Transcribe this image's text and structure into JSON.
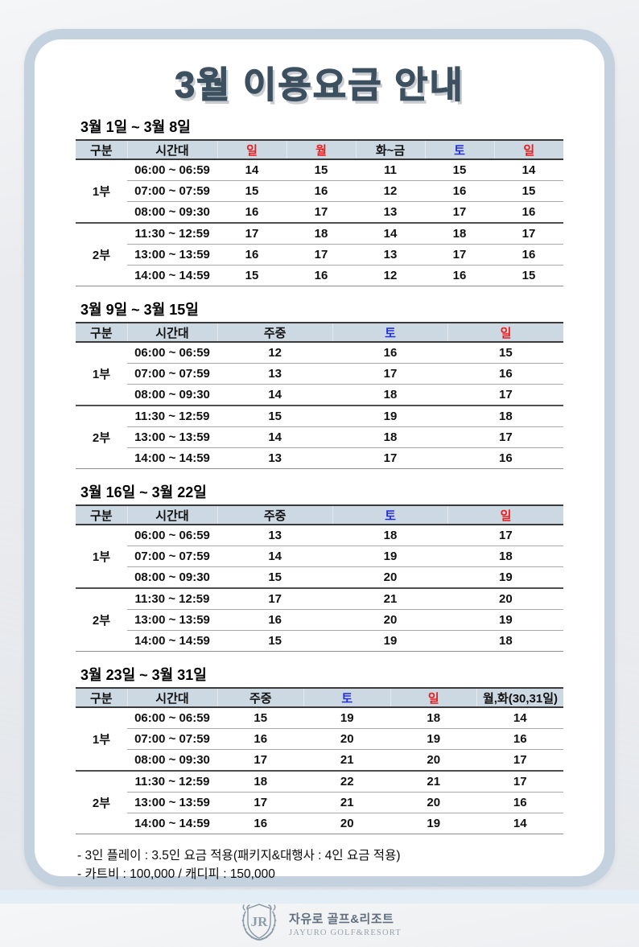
{
  "page": {
    "title": "3월 이용요금 안내"
  },
  "colors": {
    "sunday_red": "#ee1c1c",
    "saturday_blue": "#2430df",
    "plain_header": "#111111",
    "header_bg": "#ccd8e2",
    "frame": "#c3d2de",
    "title": "#3d5060"
  },
  "tables": [
    {
      "title": "3월 1일 ~ 3월 8일",
      "columns": [
        {
          "label": "구분",
          "type": "plain"
        },
        {
          "label": "시간대",
          "type": "plain"
        },
        {
          "label": "일",
          "type": "sunday"
        },
        {
          "label": "월",
          "type": "sunday"
        },
        {
          "label": "화~금",
          "type": "plain"
        },
        {
          "label": "토",
          "type": "saturday"
        },
        {
          "label": "일",
          "type": "sunday"
        }
      ],
      "groups": [
        {
          "label": "1부",
          "rows": [
            {
              "time": "06:00 ~ 06:59",
              "prices": [
                "14",
                "15",
                "11",
                "15",
                "14"
              ]
            },
            {
              "time": "07:00 ~ 07:59",
              "prices": [
                "15",
                "16",
                "12",
                "16",
                "15"
              ]
            },
            {
              "time": "08:00 ~ 09:30",
              "prices": [
                "16",
                "17",
                "13",
                "17",
                "16"
              ]
            }
          ]
        },
        {
          "label": "2부",
          "rows": [
            {
              "time": "11:30 ~ 12:59",
              "prices": [
                "17",
                "18",
                "14",
                "18",
                "17"
              ]
            },
            {
              "time": "13:00 ~ 13:59",
              "prices": [
                "16",
                "17",
                "13",
                "17",
                "16"
              ]
            },
            {
              "time": "14:00 ~ 14:59",
              "prices": [
                "15",
                "16",
                "12",
                "16",
                "15"
              ]
            }
          ]
        }
      ]
    },
    {
      "title": "3월 9일 ~ 3월 15일",
      "columns": [
        {
          "label": "구분",
          "type": "plain"
        },
        {
          "label": "시간대",
          "type": "plain"
        },
        {
          "label": "주중",
          "type": "plain"
        },
        {
          "label": "토",
          "type": "saturday"
        },
        {
          "label": "일",
          "type": "sunday"
        }
      ],
      "groups": [
        {
          "label": "1부",
          "rows": [
            {
              "time": "06:00 ~ 06:59",
              "prices": [
                "12",
                "16",
                "15"
              ]
            },
            {
              "time": "07:00 ~ 07:59",
              "prices": [
                "13",
                "17",
                "16"
              ]
            },
            {
              "time": "08:00 ~ 09:30",
              "prices": [
                "14",
                "18",
                "17"
              ]
            }
          ]
        },
        {
          "label": "2부",
          "rows": [
            {
              "time": "11:30 ~ 12:59",
              "prices": [
                "15",
                "19",
                "18"
              ]
            },
            {
              "time": "13:00 ~ 13:59",
              "prices": [
                "14",
                "18",
                "17"
              ]
            },
            {
              "time": "14:00 ~ 14:59",
              "prices": [
                "13",
                "17",
                "16"
              ]
            }
          ]
        }
      ]
    },
    {
      "title": "3월 16일 ~ 3월 22일",
      "columns": [
        {
          "label": "구분",
          "type": "plain"
        },
        {
          "label": "시간대",
          "type": "plain"
        },
        {
          "label": "주중",
          "type": "plain"
        },
        {
          "label": "토",
          "type": "saturday"
        },
        {
          "label": "일",
          "type": "sunday"
        }
      ],
      "groups": [
        {
          "label": "1부",
          "rows": [
            {
              "time": "06:00 ~ 06:59",
              "prices": [
                "13",
                "18",
                "17"
              ]
            },
            {
              "time": "07:00 ~ 07:59",
              "prices": [
                "14",
                "19",
                "18"
              ]
            },
            {
              "time": "08:00 ~ 09:30",
              "prices": [
                "15",
                "20",
                "19"
              ]
            }
          ]
        },
        {
          "label": "2부",
          "rows": [
            {
              "time": "11:30 ~ 12:59",
              "prices": [
                "17",
                "21",
                "20"
              ]
            },
            {
              "time": "13:00 ~ 13:59",
              "prices": [
                "16",
                "20",
                "19"
              ]
            },
            {
              "time": "14:00 ~ 14:59",
              "prices": [
                "15",
                "19",
                "18"
              ]
            }
          ]
        }
      ]
    },
    {
      "title": "3월 23일 ~ 3월 31일",
      "columns": [
        {
          "label": "구분",
          "type": "plain"
        },
        {
          "label": "시간대",
          "type": "plain"
        },
        {
          "label": "주중",
          "type": "plain"
        },
        {
          "label": "토",
          "type": "saturday"
        },
        {
          "label": "일",
          "type": "sunday"
        },
        {
          "label": "월,화(30,31일)",
          "type": "plain"
        }
      ],
      "groups": [
        {
          "label": "1부",
          "rows": [
            {
              "time": "06:00 ~ 06:59",
              "prices": [
                "15",
                "19",
                "18",
                "14"
              ]
            },
            {
              "time": "07:00 ~ 07:59",
              "prices": [
                "16",
                "20",
                "19",
                "16"
              ]
            },
            {
              "time": "08:00 ~ 09:30",
              "prices": [
                "17",
                "21",
                "20",
                "17"
              ]
            }
          ]
        },
        {
          "label": "2부",
          "rows": [
            {
              "time": "11:30 ~ 12:59",
              "prices": [
                "18",
                "22",
                "21",
                "17"
              ]
            },
            {
              "time": "13:00 ~ 13:59",
              "prices": [
                "17",
                "21",
                "20",
                "16"
              ]
            },
            {
              "time": "14:00 ~ 14:59",
              "prices": [
                "16",
                "20",
                "19",
                "14"
              ]
            }
          ]
        }
      ]
    }
  ],
  "notes": [
    "- 3인 플레이 : 3.5인 요금 적용(패키지&대행사 : 4인 요금 적용)",
    "- 카트비 : 100,000 / 캐디피 : 150,000"
  ],
  "logo": {
    "monogram": "JR",
    "name_ko": "자유로 골프&리조트",
    "name_en": "JAYURO GOLF&RESORT"
  }
}
